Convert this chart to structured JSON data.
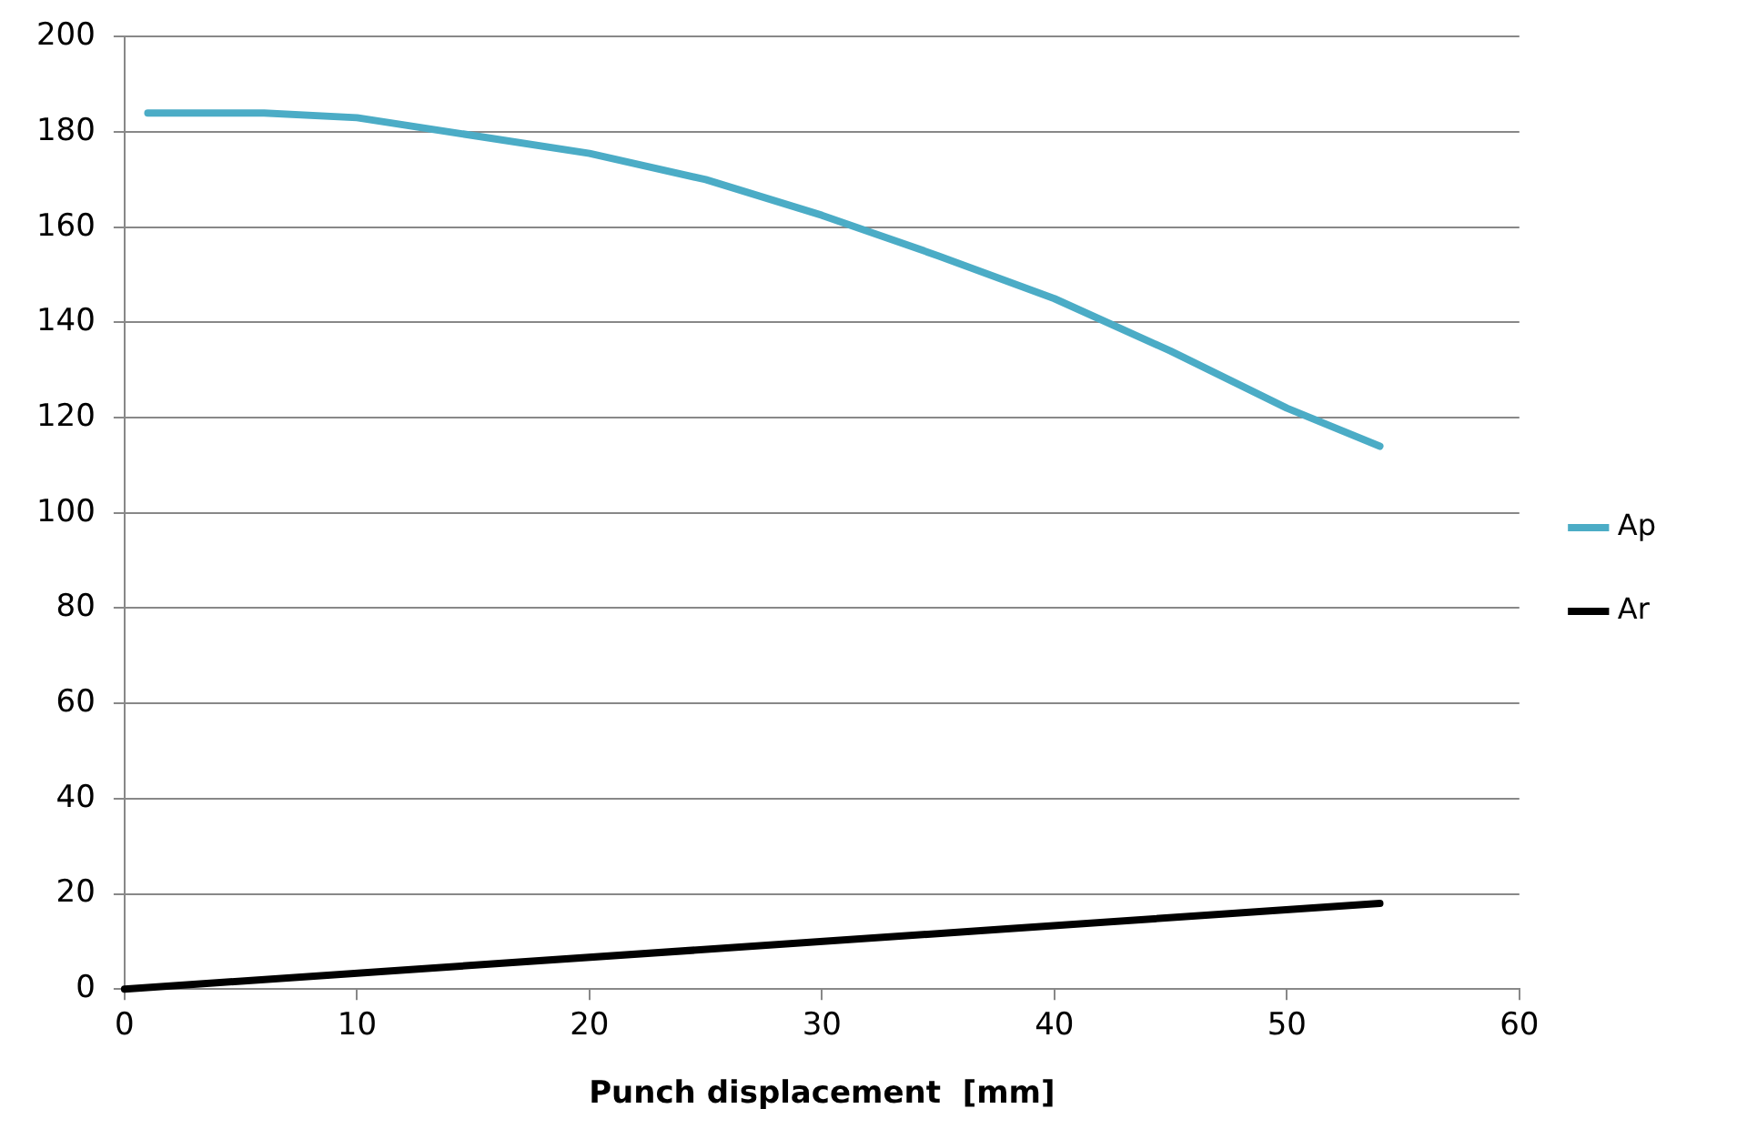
{
  "chart_data": {
    "type": "line",
    "xlabel": "Punch displacement  [mm]",
    "xlim": [
      0,
      60
    ],
    "xticks": [
      0,
      10,
      20,
      30,
      40,
      50,
      60
    ],
    "ylim": [
      0,
      200
    ],
    "yticks": [
      0,
      20,
      40,
      60,
      80,
      100,
      120,
      140,
      160,
      180,
      200
    ],
    "grid": "y",
    "legend": "right",
    "marker": "none",
    "line_style": "solid",
    "series": [
      {
        "name": "Ap",
        "color": "#4bacc6",
        "x": [
          1,
          6,
          10,
          14,
          20,
          25,
          30,
          35,
          40,
          45,
          50,
          54
        ],
        "values": [
          184,
          184,
          183,
          180,
          175.5,
          170,
          162.5,
          154,
          145,
          134,
          122,
          114
        ]
      },
      {
        "name": "Ar",
        "color": "#000000",
        "x": [
          0,
          54
        ],
        "values": [
          0,
          18
        ]
      }
    ]
  }
}
